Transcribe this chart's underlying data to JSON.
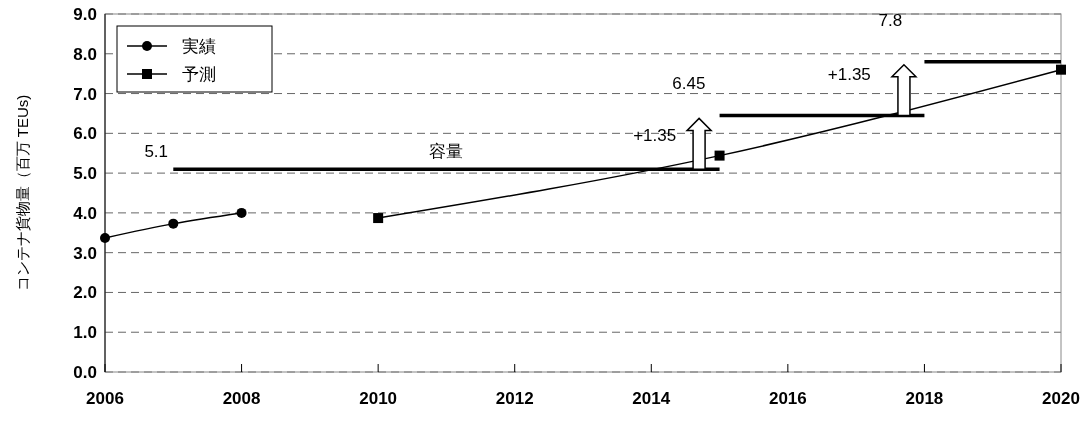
{
  "chart_data": {
    "type": "line",
    "ylabel": "コンテナ貨物量（百万 TEUs)",
    "xlim": [
      2006,
      2020
    ],
    "xticks": [
      2006,
      2008,
      2010,
      2012,
      2014,
      2016,
      2018,
      2020
    ],
    "ylim": [
      0,
      9
    ],
    "yticks": [
      {
        "value": 0,
        "label": "0.0"
      },
      {
        "value": 1,
        "label": "1.0"
      },
      {
        "value": 2,
        "label": "2.0"
      },
      {
        "value": 3,
        "label": "3.0"
      },
      {
        "value": 4,
        "label": "4.0"
      },
      {
        "value": 5,
        "label": "5.0"
      },
      {
        "value": 6,
        "label": "6.0"
      },
      {
        "value": 7,
        "label": "7.0"
      },
      {
        "value": 8,
        "label": "8.0"
      },
      {
        "value": 9,
        "label": "9.0"
      }
    ],
    "grid": "y",
    "legend": "top left",
    "series": [
      {
        "name": "実績",
        "color": "#000000",
        "marker": "circle",
        "x": [
          2006,
          2007,
          2008
        ],
        "values": [
          3.37,
          3.73,
          4.0
        ]
      },
      {
        "name": "予測",
        "color": "#000000",
        "marker": "square",
        "x": [
          2010,
          2015,
          2020
        ],
        "values": [
          3.87,
          5.44,
          7.6
        ]
      },
      {
        "color": "#000000",
        "marker": "none",
        "line_style": "solid",
        "x": [
          2007,
          2015
        ],
        "values": [
          5.1,
          5.1
        ]
      },
      {
        "color": "#000000",
        "marker": "none",
        "line_style": "solid",
        "x": [
          2015,
          2018
        ],
        "values": [
          6.45,
          6.45
        ]
      },
      {
        "color": "#000000",
        "marker": "none",
        "line_style": "solid",
        "x": [
          2018,
          2020
        ],
        "values": [
          7.8,
          7.8
        ]
      }
    ],
    "annotations": [
      "5.1",
      "容量",
      "+1.35",
      "6.45",
      "+1.35",
      "7.8"
    ]
  }
}
